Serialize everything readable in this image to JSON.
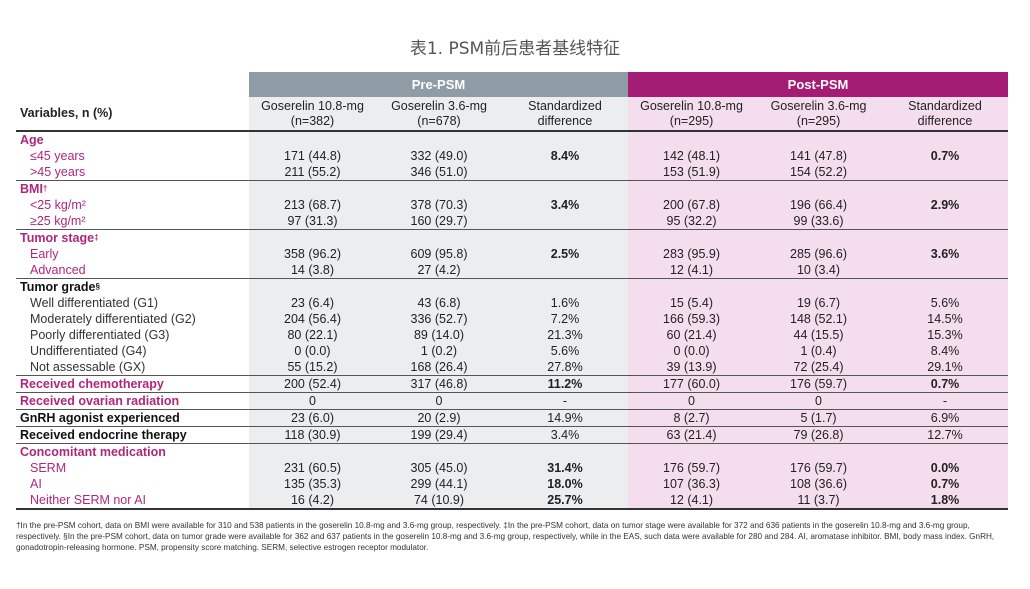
{
  "title": "表1. PSM前后患者基线特征",
  "groups": {
    "pre": "Pre-PSM",
    "post": "Post-PSM"
  },
  "columns": {
    "variables": "Variables, n (%)",
    "pre_a": "Goserelin 10.8-mg (n=382)",
    "pre_b": "Goserelin 3.6-mg (n=678)",
    "pre_sd": "Standardized difference",
    "post_a": "Goserelin 10.8-mg (n=295)",
    "post_b": "Goserelin 3.6-mg (n=295)",
    "post_sd": "Standardized difference"
  },
  "sections": {
    "age": {
      "label": "Age",
      "sd_pre": "8.4%",
      "sd_post": "0.7%",
      "rows": [
        {
          "label": "≤45 years",
          "v": [
            "171 (44.8)",
            "332 (49.0)",
            "142 (48.1)",
            "141 (47.8)"
          ]
        },
        {
          "label": ">45 years",
          "v": [
            "211 (55.2)",
            "346 (51.0)",
            "153 (51.9)",
            "154 (52.2)"
          ]
        }
      ]
    },
    "bmi": {
      "label": "BMI",
      "mark": "†",
      "sd_pre": "3.4%",
      "sd_post": "2.9%",
      "rows": [
        {
          "label": "<25 kg/m²",
          "v": [
            "213 (68.7)",
            "378 (70.3)",
            "200 (67.8)",
            "196 (66.4)"
          ]
        },
        {
          "label": "≥25 kg/m²",
          "v": [
            "97 (31.3)",
            "160 (29.7)",
            "95 (32.2)",
            "99 (33.6)"
          ]
        }
      ]
    },
    "stage": {
      "label": "Tumor stage",
      "mark": "‡",
      "sd_pre": "2.5%",
      "sd_post": "3.6%",
      "rows": [
        {
          "label": "Early",
          "v": [
            "358 (96.2)",
            "609 (95.8)",
            "283 (95.9)",
            "285 (96.6)"
          ]
        },
        {
          "label": "Advanced",
          "v": [
            "14 (3.8)",
            "27 (4.2)",
            "12 (4.1)",
            "10 (3.4)"
          ]
        }
      ]
    },
    "grade": {
      "label": "Tumor grade",
      "mark": "§",
      "rows": [
        {
          "label": "Well differentiated (G1)",
          "v": [
            "23 (6.4)",
            "43 (6.8)",
            "1.6%",
            "15 (5.4)",
            "19 (6.7)",
            "5.6%"
          ]
        },
        {
          "label": "Moderately differentiated (G2)",
          "v": [
            "204 (56.4)",
            "336 (52.7)",
            "7.2%",
            "166 (59.3)",
            "148 (52.1)",
            "14.5%"
          ]
        },
        {
          "label": "Poorly differentiated (G3)",
          "v": [
            "80 (22.1)",
            "89 (14.0)",
            "21.3%",
            "60 (21.4)",
            "44 (15.5)",
            "15.3%"
          ]
        },
        {
          "label": "Undifferentiated (G4)",
          "v": [
            "0 (0.0)",
            "1 (0.2)",
            "5.6%",
            "0 (0.0)",
            "1 (0.4)",
            "8.4%"
          ]
        },
        {
          "label": "Not assessable (GX)",
          "v": [
            "55 (15.2)",
            "168 (26.4)",
            "27.8%",
            "39 (13.9)",
            "72 (25.4)",
            "29.1%"
          ]
        }
      ]
    },
    "chemo": {
      "label": "Received chemotherapy",
      "v": [
        "200 (52.4)",
        "317 (46.8)",
        "11.2%",
        "177 (60.0)",
        "176 (59.7)",
        "0.7%"
      ]
    },
    "ovarian": {
      "label": "Received ovarian radiation",
      "v": [
        "0",
        "0",
        "-",
        "0",
        "0",
        "-"
      ]
    },
    "gnrh": {
      "label": "GnRH agonist experienced",
      "v": [
        "23 (6.0)",
        "20 (2.9)",
        "14.9%",
        "8 (2.7)",
        "5 (1.7)",
        "6.9%"
      ]
    },
    "endocrine": {
      "label": "Received endocrine therapy",
      "v": [
        "118 (30.9)",
        "199 (29.4)",
        "3.4%",
        "63 (21.4)",
        "79 (26.8)",
        "12.7%"
      ]
    },
    "concomitant": {
      "label": "Concomitant medication",
      "rows": [
        {
          "label": "SERM",
          "v": [
            "231 (60.5)",
            "305 (45.0)",
            "31.4%",
            "176 (59.7)",
            "176 (59.7)",
            "0.0%"
          ]
        },
        {
          "label": "AI",
          "v": [
            "135 (35.3)",
            "299 (44.1)",
            "18.0%",
            "107 (36.3)",
            "108 (36.6)",
            "0.7%"
          ]
        },
        {
          "label": "Neither SERM nor AI",
          "v": [
            "16 (4.2)",
            "74 (10.9)",
            "25.7%",
            "12 (4.1)",
            "11 (3.7)",
            "1.8%"
          ]
        }
      ]
    }
  },
  "footnote": "†In the pre-PSM cohort, data on BMI were available for 310 and 538 patients in the goserelin 10.8-mg and 3.6-mg group, respectively. ‡In the pre-PSM cohort, data on tumor stage were available for 372 and 636 patients in the goserelin 10.8-mg and 3.6-mg group, respectively. §In the pre-PSM cohort, data on tumor grade were available for 362 and 637 patients in the goserelin 10.8-mg and 3.6-mg group, respectively, while in the EAS, such data were available for 280 and 284. AI, aromatase inhibitor. BMI, body mass index. GnRH, gonadotropin-releasing hormone. PSM, propensity score matching. SERM, selective estrogen receptor modulator."
}
